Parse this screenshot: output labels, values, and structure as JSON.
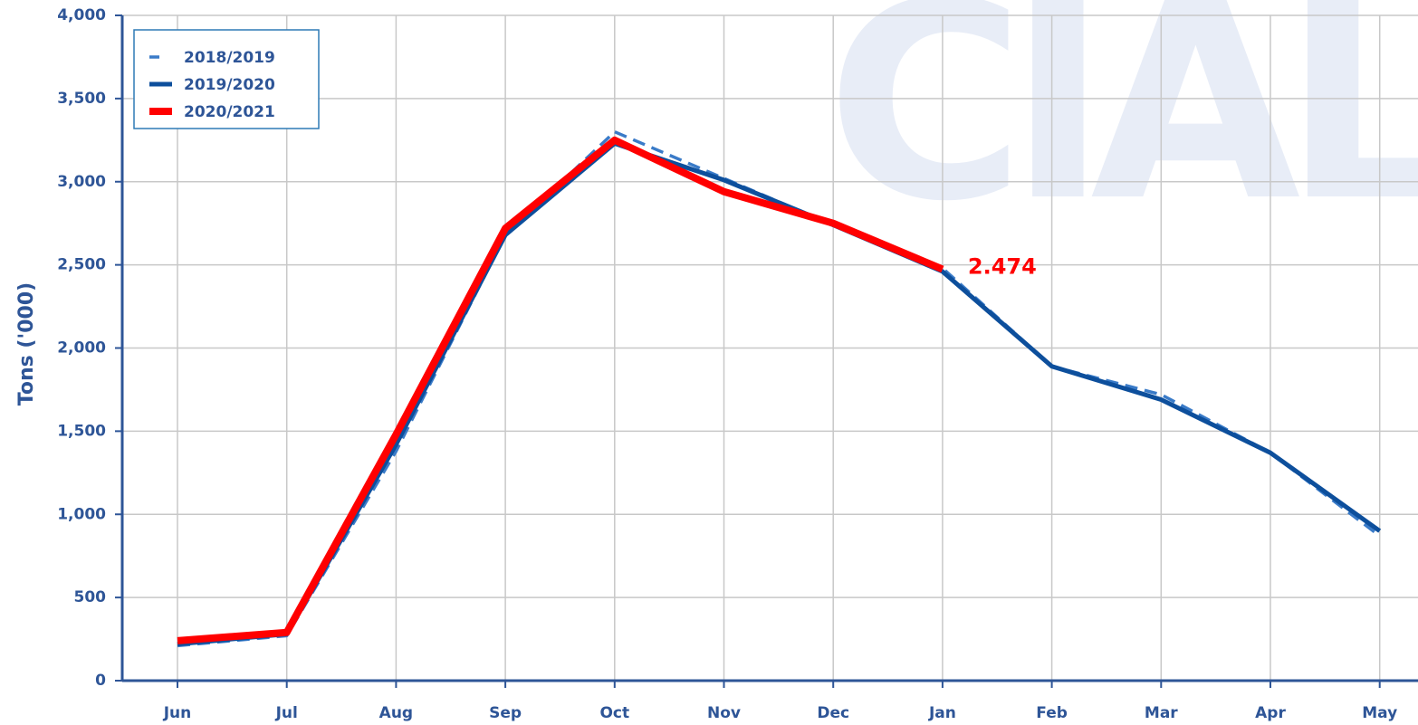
{
  "chart_data": {
    "type": "line",
    "watermark": "CIAL",
    "y_label": "Tons ('000)",
    "categories": [
      "Jun",
      "Jul",
      "Aug",
      "Sep",
      "Oct",
      "Nov",
      "Dec",
      "Jan",
      "Feb",
      "Mar",
      "Apr",
      "May"
    ],
    "series": [
      {
        "name": "2018/2019",
        "color": "#3a7bc8",
        "dashed": true,
        "values": [
          210,
          270,
          1380,
          2680,
          3300,
          3020,
          2740,
          2480,
          1890,
          1720,
          1370,
          870
        ]
      },
      {
        "name": "2019/2020",
        "color": "#0d4f9c",
        "values": [
          220,
          280,
          1420,
          2680,
          3230,
          3010,
          2740,
          2460,
          1890,
          1690,
          1370,
          900
        ]
      },
      {
        "name": "2020/2021",
        "color": "#ff0000",
        "values": [
          240,
          290,
          1480,
          2720,
          3250,
          2940,
          2750,
          2474,
          null,
          null,
          null,
          null
        ],
        "value_labels": [
          null,
          null,
          null,
          null,
          null,
          null,
          null,
          "2.474",
          null,
          null,
          null,
          null
        ]
      }
    ],
    "ylim": [
      0,
      4000
    ],
    "yticks": [
      0,
      500,
      {
        "value": 1000,
        "label": "1,000"
      },
      {
        "value": 1500,
        "label": "1,500"
      },
      {
        "value": 2000,
        "label": "2,000"
      },
      {
        "value": 2500,
        "label": "2,500"
      },
      {
        "value": 3000,
        "label": "3,000"
      },
      {
        "value": 3500,
        "label": "3,500"
      },
      {
        "value": 4000,
        "label": "4,000"
      }
    ],
    "grid": true,
    "legend": "top-left"
  }
}
